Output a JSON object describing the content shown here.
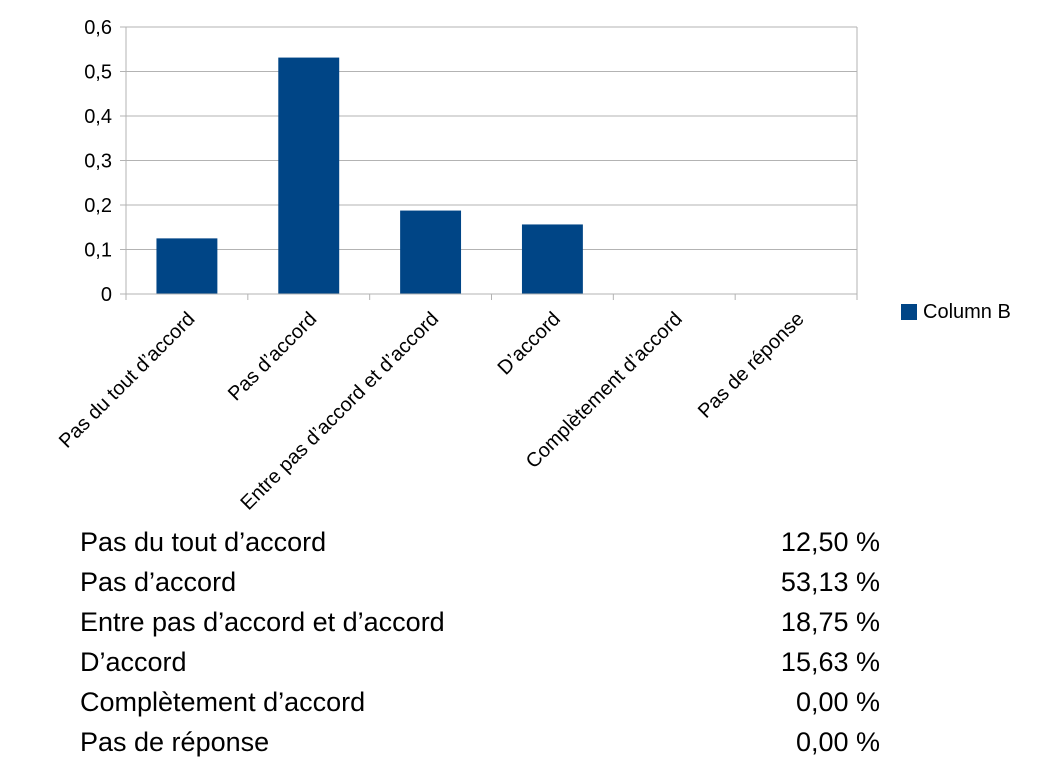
{
  "chart_data": {
    "type": "bar",
    "categories": [
      "Pas du tout d’accord",
      "Pas d’accord",
      "Entre pas d’accord et d’accord",
      "D’accord",
      "Complètement d’accord",
      "Pas de réponse"
    ],
    "series": [
      {
        "name": "Column B",
        "values": [
          0.125,
          0.5313,
          0.1875,
          0.1563,
          0,
          0
        ],
        "color": "#004586"
      }
    ],
    "y_ticks": [
      "0",
      "0,1",
      "0,2",
      "0,3",
      "0,4",
      "0,5",
      "0,6"
    ],
    "ylim": [
      0,
      0.6
    ],
    "grid": true,
    "legend": "right"
  },
  "summary": {
    "rows": [
      {
        "label": "Pas du tout d’accord",
        "value": "12,50 %"
      },
      {
        "label": "Pas d’accord",
        "value": "53,13 %"
      },
      {
        "label": "Entre pas d’accord et d’accord",
        "value": "18,75 %"
      },
      {
        "label": "D’accord",
        "value": "15,63 %"
      },
      {
        "label": "Complètement d’accord",
        "value": "0,00 %"
      },
      {
        "label": "Pas de réponse",
        "value": "0,00 %"
      }
    ]
  }
}
